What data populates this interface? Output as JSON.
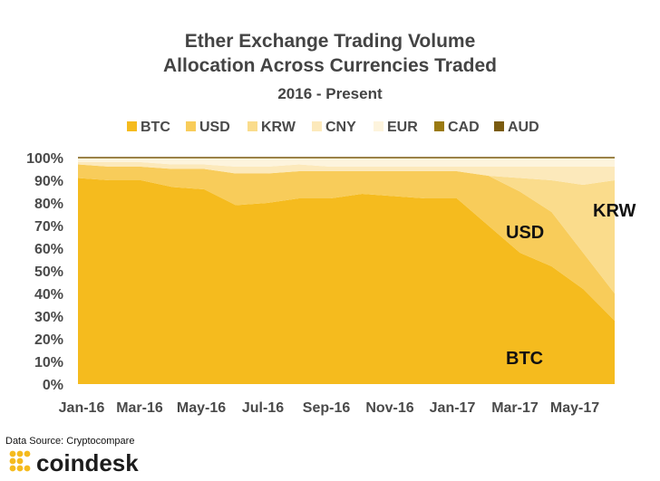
{
  "title_line1": "Ether Exchange Trading Volume",
  "title_line2": "Allocation Across Currencies Traded",
  "subtitle": "2016 - Present",
  "source": "Data Source: Cryptocompare",
  "brand": "coindesk",
  "chart_data": {
    "type": "area",
    "stacked": true,
    "normalized": true,
    "x_ticks": [
      "Jan-16",
      "Mar-16",
      "May-16",
      "Jul-16",
      "Sep-16",
      "Nov-16",
      "Jan-17",
      "Mar-17",
      "May-17"
    ],
    "y_ticks": [
      "0%",
      "10%",
      "20%",
      "30%",
      "40%",
      "50%",
      "60%",
      "70%",
      "80%",
      "90%",
      "100%"
    ],
    "ylim": [
      0,
      100
    ],
    "grid": false,
    "legend_position": "top",
    "x": [
      "Jan-16",
      "Feb-16",
      "Mar-16",
      "Apr-16",
      "May-16",
      "Jun-16",
      "Jul-16",
      "Aug-16",
      "Sep-16",
      "Oct-16",
      "Nov-16",
      "Dec-16",
      "Jan-17",
      "Feb-17",
      "Mar-17",
      "Apr-17",
      "May-17",
      "Jun-17"
    ],
    "series": [
      {
        "name": "BTC",
        "color": "#F5BB1E",
        "values": [
          91,
          90,
          90,
          87,
          86,
          79,
          80,
          82,
          82,
          84,
          83,
          82,
          82,
          70,
          58,
          52,
          42,
          28
        ]
      },
      {
        "name": "USD",
        "color": "#F8CC5A",
        "values": [
          6,
          6,
          6,
          8,
          9,
          14,
          13,
          12,
          12,
          10,
          11,
          12,
          12,
          22,
          27,
          24,
          16,
          12
        ]
      },
      {
        "name": "KRW",
        "color": "#FADC8C",
        "values": [
          0,
          0,
          0,
          0,
          0,
          0,
          0,
          0,
          0,
          0,
          0,
          0,
          0,
          0,
          6,
          14,
          30,
          50
        ]
      },
      {
        "name": "CNY",
        "color": "#FCE9BB",
        "values": [
          1,
          2,
          2,
          2,
          2,
          3,
          3,
          3,
          2,
          2,
          2,
          2,
          2,
          4,
          5,
          6,
          8,
          6
        ]
      },
      {
        "name": "EUR",
        "color": "#FDF4DD",
        "values": [
          2,
          2,
          2,
          3,
          3,
          4,
          4,
          3,
          4,
          4,
          4,
          4,
          4,
          4,
          4,
          4,
          4,
          4
        ]
      },
      {
        "name": "CAD",
        "color": "#9A7A12",
        "values": [
          0,
          0,
          0,
          0,
          0,
          0,
          0,
          0,
          0,
          0,
          0,
          0,
          0,
          0,
          0,
          0,
          0,
          0
        ]
      },
      {
        "name": "AUD",
        "color": "#7A5B10",
        "values": [
          0,
          0,
          0,
          0,
          0,
          0,
          0,
          0,
          0,
          0,
          0,
          0,
          0,
          0,
          0,
          0,
          0,
          0
        ]
      }
    ],
    "annotations": [
      {
        "text": "KRW"
      },
      {
        "text": "USD"
      },
      {
        "text": "BTC"
      }
    ]
  }
}
